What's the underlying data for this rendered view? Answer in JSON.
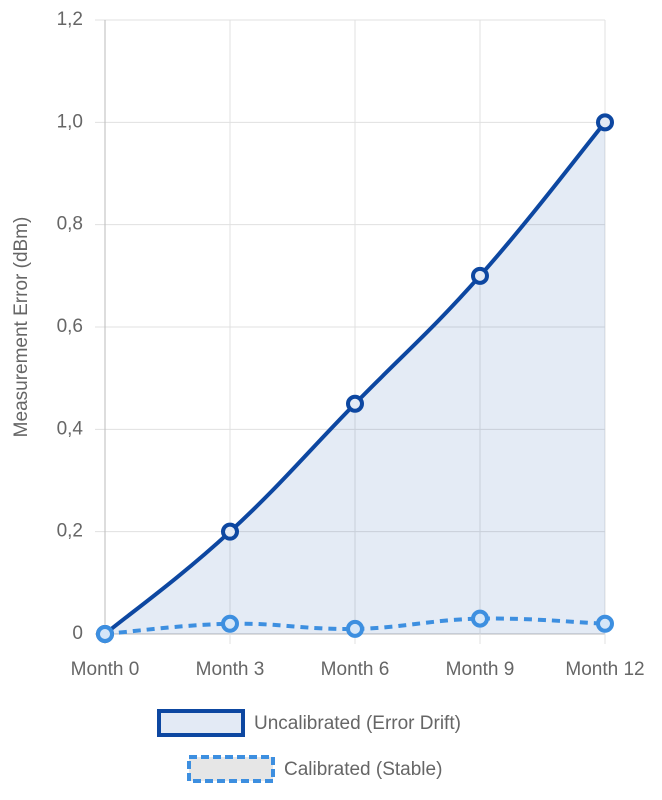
{
  "chart_data": {
    "type": "line",
    "categories": [
      "Month 0",
      "Month 3",
      "Month 6",
      "Month 9",
      "Month 12"
    ],
    "y_label": "Measurement Error (dBm)",
    "series": [
      {
        "name": "Uncalibrated (Error Drift)",
        "color": "#0d47a1",
        "fill": true,
        "dashed": false,
        "values": [
          0,
          0.2,
          0.45,
          0.7,
          1.0
        ]
      },
      {
        "name": "Calibrated (Stable)",
        "color": "#3d8fe0",
        "fill": false,
        "dashed": true,
        "values": [
          0,
          0.02,
          0.01,
          0.03,
          0.02
        ]
      }
    ],
    "ylim": [
      0,
      1.2
    ],
    "yticks": [
      0,
      {
        "value": 0.2,
        "label": "0,2"
      },
      {
        "value": 0.4,
        "label": "0,4"
      },
      {
        "value": 0.6,
        "label": "0,6"
      },
      {
        "value": 0.8,
        "label": "0,8"
      },
      {
        "value": 1.0,
        "label": "1,0"
      },
      {
        "value": 1.2,
        "label": "1,2"
      }
    ],
    "grid": true,
    "legend": "bottom"
  }
}
